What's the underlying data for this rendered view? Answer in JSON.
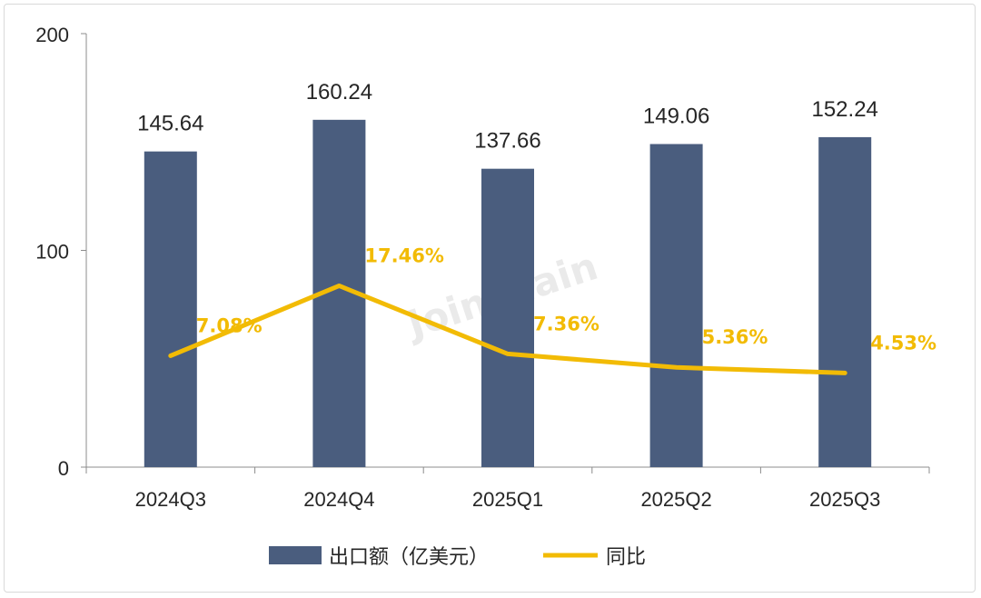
{
  "chart_data": {
    "type": "bar",
    "categories": [
      "2024Q3",
      "2024Q4",
      "2025Q1",
      "2025Q2",
      "2025Q3"
    ],
    "series": [
      {
        "name": "出口额（亿美元）",
        "type": "bar",
        "values": [
          145.64,
          160.24,
          137.66,
          149.06,
          152.24
        ],
        "labels": [
          "145.64",
          "160.24",
          "137.66",
          "149.06",
          "152.24"
        ],
        "color": "#4a5d7e"
      },
      {
        "name": "同比",
        "type": "line",
        "values": [
          7.08,
          17.46,
          7.36,
          5.36,
          4.53
        ],
        "labels": [
          "7.08%",
          "17.46%",
          "7.36%",
          "5.36%",
          "4.53%"
        ],
        "color": "#f2bb05"
      }
    ],
    "y_ticks": [
      "0",
      "100",
      "200"
    ],
    "ylim": [
      0,
      200
    ],
    "grid": false,
    "legend_position": "bottom",
    "watermark": "Joinchain"
  }
}
